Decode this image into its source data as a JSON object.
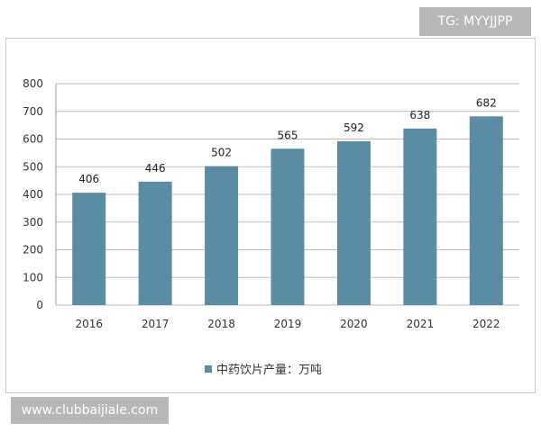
{
  "watermarks": {
    "top": "TG: MYYJJPP",
    "bottom": "www.clubbaijiale.com"
  },
  "colors": {
    "bar": "#5b8ca3",
    "grid": "#bfbfbf",
    "axis": "#999999"
  },
  "chart_data": {
    "type": "bar",
    "categories": [
      "2016",
      "2017",
      "2018",
      "2019",
      "2020",
      "2021",
      "2022"
    ],
    "series": [
      {
        "name": "中药饮片产量：万吨",
        "values": [
          406,
          446,
          502,
          565,
          592,
          638,
          682
        ]
      }
    ],
    "ylim": [
      0,
      800
    ],
    "yticks": [
      0,
      100,
      200,
      300,
      400,
      500,
      600,
      700,
      800
    ],
    "grid": true,
    "legend": "bottom"
  }
}
